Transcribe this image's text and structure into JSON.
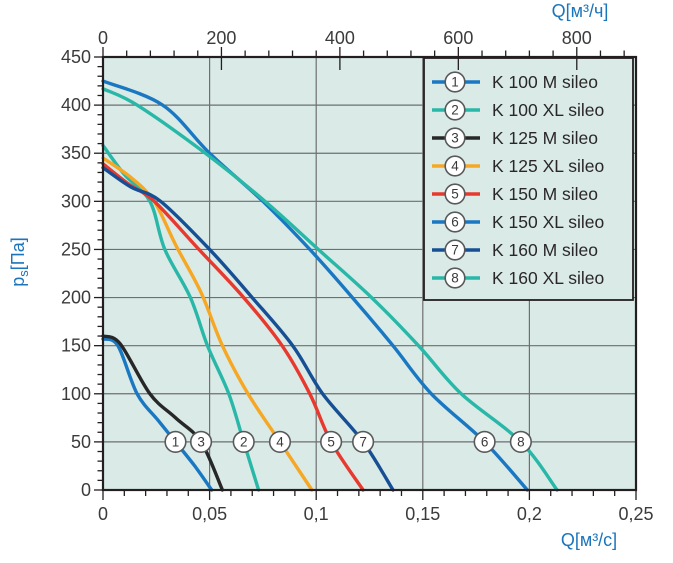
{
  "figure": {
    "background": "#ffffff",
    "plot_bg": "#d9eae7",
    "grid_color": "#6f6f6f",
    "axis_color": "#231f20",
    "unit_label_color": "#1b75bc",
    "tick_label_color": "#3b3b3d",
    "marker_circle_stroke": "#58595b",
    "legend_border_color": "#231f20"
  },
  "chart_data": {
    "type": "line",
    "title": "",
    "ylabel": {
      "base": "p",
      "sub": "s",
      "unit": "[Па]"
    },
    "xlabel_bottom": "Q[м³/с]",
    "xlabel_top": "Q[м³/ч]",
    "grid": true,
    "legend_position": "top-right",
    "y_axis": {
      "min": 0,
      "max": 450,
      "major": 50,
      "minor": 10,
      "tick_labels": [
        "0",
        "50",
        "100",
        "150",
        "200",
        "250",
        "300",
        "350",
        "400",
        "450"
      ]
    },
    "x_axis_bottom": {
      "min": 0,
      "max": 0.25,
      "major": 0.05,
      "minor": 0.01,
      "tick_labels": [
        "0",
        "0,05",
        "0,1",
        "0,15",
        "0,2",
        "0,25"
      ]
    },
    "x_axis_top": {
      "min": 0,
      "max": 900,
      "major": 200,
      "minor": 40,
      "tick_labels": [
        "0",
        "200",
        "400",
        "600",
        "800"
      ]
    },
    "marker_pressure_pa": 50,
    "series": [
      {
        "num": "1",
        "label": "K 100 M sileo",
        "color": "#1a78c2",
        "marker_q": 0.034,
        "points_q_pa": [
          [
            0,
            157
          ],
          [
            0.007,
            150
          ],
          [
            0.016,
            100
          ],
          [
            0.026,
            72
          ],
          [
            0.034,
            50
          ],
          [
            0.043,
            25
          ],
          [
            0.051,
            0
          ]
        ]
      },
      {
        "num": "2",
        "label": "K 100 XL sileo",
        "color": "#29b8a8",
        "marker_q": 0.066,
        "points_q_pa": [
          [
            0,
            358
          ],
          [
            0.01,
            328
          ],
          [
            0.022,
            300
          ],
          [
            0.029,
            250
          ],
          [
            0.041,
            200
          ],
          [
            0.049,
            150
          ],
          [
            0.059,
            100
          ],
          [
            0.066,
            50
          ],
          [
            0.073,
            0
          ]
        ]
      },
      {
        "num": "3",
        "label": "K 125 M sileo",
        "color": "#272727",
        "marker_q": 0.046,
        "points_q_pa": [
          [
            0,
            160
          ],
          [
            0.008,
            152
          ],
          [
            0.022,
            100
          ],
          [
            0.034,
            75
          ],
          [
            0.046,
            50
          ],
          [
            0.056,
            0
          ]
        ]
      },
      {
        "num": "4",
        "label": "K 125 XL sileo",
        "color": "#f6a723",
        "marker_q": 0.083,
        "points_q_pa": [
          [
            0,
            345
          ],
          [
            0.013,
            325
          ],
          [
            0.024,
            300
          ],
          [
            0.034,
            255
          ],
          [
            0.046,
            205
          ],
          [
            0.056,
            150
          ],
          [
            0.068,
            100
          ],
          [
            0.083,
            50
          ],
          [
            0.098,
            0
          ]
        ]
      },
      {
        "num": "5",
        "label": "K 150 M sileo",
        "color": "#e8392f",
        "marker_q": 0.107,
        "points_q_pa": [
          [
            0,
            339
          ],
          [
            0.012,
            318
          ],
          [
            0.024,
            300
          ],
          [
            0.045,
            250
          ],
          [
            0.066,
            200
          ],
          [
            0.084,
            150
          ],
          [
            0.097,
            100
          ],
          [
            0.107,
            50
          ],
          [
            0.122,
            0
          ]
        ]
      },
      {
        "num": "6",
        "label": "K 150 XL sileo",
        "color": "#1a78c2",
        "marker_q": 0.179,
        "points_q_pa": [
          [
            0,
            425
          ],
          [
            0.028,
            400
          ],
          [
            0.05,
            350
          ],
          [
            0.075,
            300
          ],
          [
            0.097,
            250
          ],
          [
            0.117,
            200
          ],
          [
            0.136,
            150
          ],
          [
            0.154,
            100
          ],
          [
            0.179,
            50
          ],
          [
            0.199,
            0
          ]
        ]
      },
      {
        "num": "7",
        "label": "K 160 M sileo",
        "color": "#174f94",
        "marker_q": 0.122,
        "points_q_pa": [
          [
            0,
            335
          ],
          [
            0.013,
            315
          ],
          [
            0.027,
            300
          ],
          [
            0.05,
            250
          ],
          [
            0.07,
            200
          ],
          [
            0.089,
            150
          ],
          [
            0.103,
            100
          ],
          [
            0.122,
            50
          ],
          [
            0.136,
            0
          ]
        ]
      },
      {
        "num": "8",
        "label": "K 160 XL sileo",
        "color": "#29b8a8",
        "marker_q": 0.196,
        "points_q_pa": [
          [
            0,
            417
          ],
          [
            0.016,
            400
          ],
          [
            0.048,
            350
          ],
          [
            0.076,
            300
          ],
          [
            0.101,
            250
          ],
          [
            0.126,
            200
          ],
          [
            0.148,
            150
          ],
          [
            0.168,
            100
          ],
          [
            0.196,
            50
          ],
          [
            0.213,
            0
          ]
        ]
      }
    ]
  }
}
